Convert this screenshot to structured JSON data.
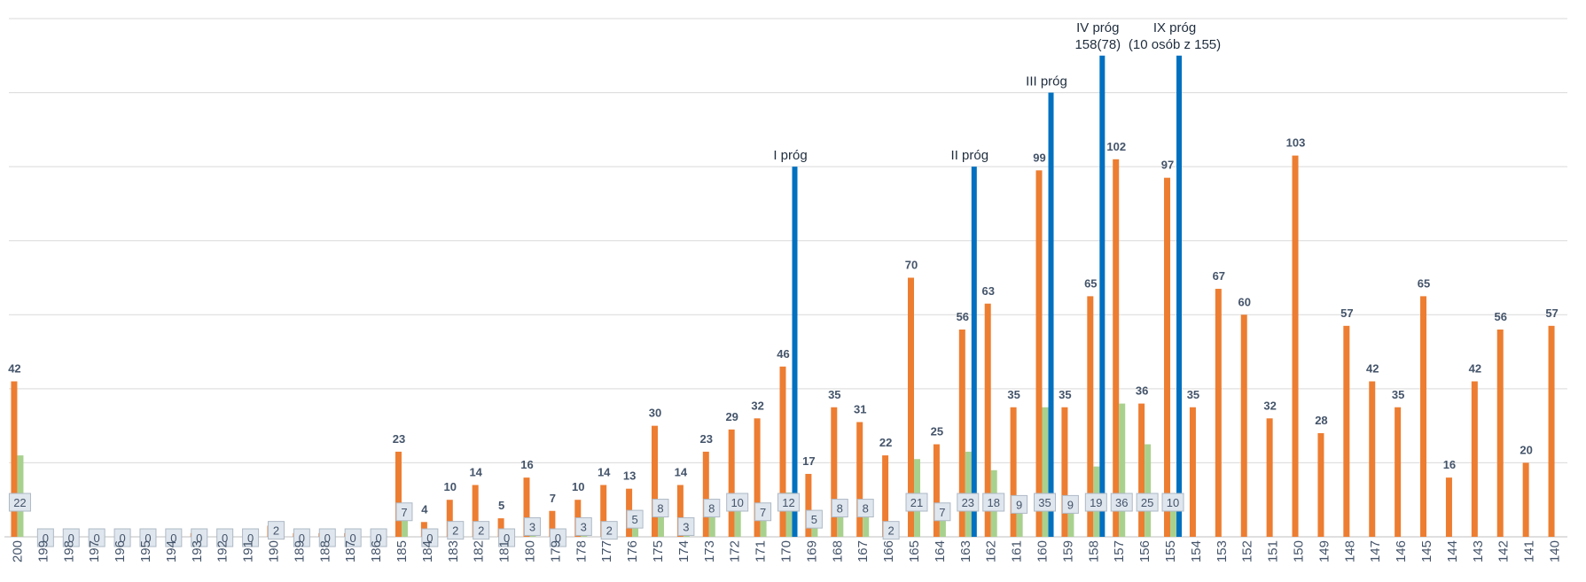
{
  "chart_data": {
    "type": "bar",
    "title": "",
    "xlabel": "",
    "ylabel": "",
    "ylim": [
      0,
      140
    ],
    "colors": {
      "orange": "#ed7d31",
      "green": "#a9d18e",
      "blue": "#0070c0"
    },
    "categories": [
      "200",
      "199",
      "198",
      "197",
      "196",
      "195",
      "194",
      "193",
      "192",
      "191",
      "190",
      "189",
      "188",
      "187",
      "186",
      "185",
      "184",
      "183",
      "182",
      "181",
      "180",
      "179",
      "178",
      "177",
      "176",
      "175",
      "174",
      "173",
      "172",
      "171",
      "170",
      "169",
      "168",
      "167",
      "166",
      "165",
      "164",
      "163",
      "162",
      "161",
      "160",
      "159",
      "158",
      "157",
      "156",
      "155",
      "154",
      "153",
      "152",
      "151",
      "150",
      "149",
      "148",
      "147",
      "146",
      "145",
      "144",
      "143",
      "142",
      "141",
      "140"
    ],
    "series": [
      {
        "name": "orange",
        "color": "#ed7d31",
        "values": [
          42,
          0,
          0,
          0,
          0,
          0,
          0,
          1,
          0,
          0,
          3,
          1,
          1,
          1,
          0,
          23,
          4,
          10,
          14,
          5,
          16,
          7,
          10,
          14,
          13,
          30,
          14,
          23,
          29,
          32,
          46,
          17,
          35,
          31,
          22,
          70,
          25,
          56,
          63,
          35,
          99,
          35,
          65,
          102,
          36,
          97,
          35,
          67,
          60,
          32,
          103,
          28,
          57,
          42,
          35,
          65,
          16,
          42,
          56,
          20,
          57
        ],
        "labels": [
          "42",
          "",
          "",
          "",
          "",
          "",
          "",
          "",
          "",
          "",
          "",
          "",
          "",
          "",
          "",
          "23",
          "4",
          "10",
          "14",
          "5",
          "16",
          "7",
          "10",
          "14",
          "13",
          "30",
          "14",
          "23",
          "29",
          "32",
          "46",
          "17",
          "35",
          "31",
          "22",
          "70",
          "25",
          "56",
          "63",
          "35",
          "99",
          "35",
          "65",
          "102",
          "36",
          "97",
          "35",
          "67",
          "60",
          "32",
          "103",
          "28",
          "57",
          "42",
          "35",
          "65",
          "16",
          "42",
          "56",
          "20",
          "57"
        ]
      },
      {
        "name": "green",
        "color": "#a9d18e",
        "values": [
          22,
          0,
          0,
          0,
          0,
          0,
          0,
          0,
          0,
          0,
          2,
          0,
          0,
          0,
          0,
          7,
          0,
          2,
          2,
          0,
          3,
          0,
          3,
          2,
          5,
          8,
          3,
          8,
          10,
          7,
          12,
          5,
          8,
          8,
          2,
          21,
          7,
          23,
          18,
          9,
          35,
          9,
          19,
          36,
          25,
          10,
          null,
          null,
          null,
          null,
          null,
          null,
          null,
          null,
          null,
          null,
          null,
          null,
          null,
          null,
          null
        ],
        "labels": [
          "22",
          "0",
          "0",
          "0",
          "0",
          "0",
          "0",
          "0",
          "0",
          "0",
          "2",
          "0",
          "0",
          "0",
          "0",
          "7",
          "0",
          "2",
          "2",
          "0",
          "3",
          "0",
          "3",
          "2",
          "5",
          "8",
          "3",
          "8",
          "10",
          "7",
          "12",
          "5",
          "8",
          "8",
          "2",
          "21",
          "7",
          "23",
          "18",
          "9",
          "35",
          "9",
          "19",
          "36",
          "25",
          "10",
          "",
          "",
          "",
          "",
          "",
          "",
          "",
          "",
          "",
          "",
          "",
          "",
          "",
          "",
          ""
        ]
      }
    ],
    "thresholds": [
      {
        "category": "170",
        "value": 100,
        "lines": [
          "I próg"
        ]
      },
      {
        "category": "163",
        "value": 100,
        "lines": [
          "II próg"
        ]
      },
      {
        "category": "160",
        "value": 120,
        "lines": [
          "III próg"
        ]
      },
      {
        "category": "158",
        "value": 130,
        "lines": [
          "IV próg",
          "158(78)"
        ]
      },
      {
        "category": "155",
        "value": 130,
        "lines": [
          "IX próg",
          "(10 osób z 155)"
        ]
      }
    ]
  }
}
